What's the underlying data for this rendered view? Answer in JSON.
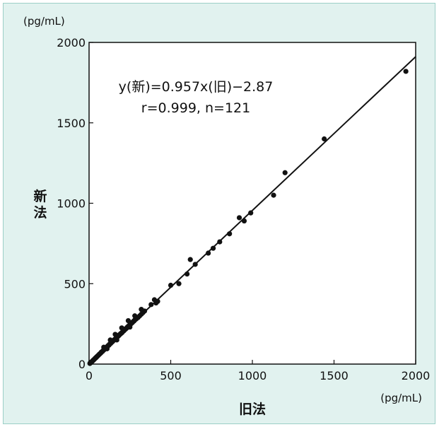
{
  "chart_data": {
    "type": "scatter",
    "xlabel": "旧法",
    "ylabel": "新法",
    "x_unit": "(pg/mL)",
    "y_unit": "(pg/mL)",
    "xlim": [
      0,
      2000
    ],
    "ylim": [
      0,
      2000
    ],
    "x_ticks": [
      "0",
      "500",
      "1000",
      "1500",
      "2000"
    ],
    "y_ticks": [
      "0",
      "500",
      "1000",
      "1500",
      "2000"
    ],
    "grid": false,
    "legend": "none",
    "annotation": {
      "line1": "y(新)=0.957x(旧)−2.87",
      "line2": "r=0.999, n=121"
    },
    "regression": {
      "slope": 0.957,
      "intercept": -2.87
    },
    "colors": {
      "background": "#e1f2ef",
      "plot": "#ffffff",
      "marks": "#111111"
    },
    "points": [
      [
        5,
        4
      ],
      [
        8,
        9
      ],
      [
        12,
        10
      ],
      [
        15,
        14
      ],
      [
        18,
        16
      ],
      [
        22,
        20
      ],
      [
        25,
        24
      ],
      [
        28,
        26
      ],
      [
        32,
        30
      ],
      [
        35,
        33
      ],
      [
        38,
        37
      ],
      [
        42,
        39
      ],
      [
        45,
        44
      ],
      [
        48,
        46
      ],
      [
        52,
        50
      ],
      [
        55,
        53
      ],
      [
        58,
        56
      ],
      [
        62,
        60
      ],
      [
        65,
        63
      ],
      [
        68,
        66
      ],
      [
        72,
        69
      ],
      [
        75,
        74
      ],
      [
        78,
        76
      ],
      [
        82,
        79
      ],
      [
        85,
        83
      ],
      [
        88,
        86
      ],
      [
        92,
        89
      ],
      [
        95,
        93
      ],
      [
        98,
        96
      ],
      [
        102,
        98
      ],
      [
        105,
        103
      ],
      [
        108,
        106
      ],
      [
        112,
        108
      ],
      [
        115,
        113
      ],
      [
        118,
        116
      ],
      [
        122,
        118
      ],
      [
        125,
        123
      ],
      [
        128,
        126
      ],
      [
        132,
        128
      ],
      [
        135,
        133
      ],
      [
        138,
        136
      ],
      [
        142,
        138
      ],
      [
        145,
        142
      ],
      [
        148,
        145
      ],
      [
        152,
        148
      ],
      [
        155,
        152
      ],
      [
        158,
        154
      ],
      [
        162,
        158
      ],
      [
        165,
        161
      ],
      [
        168,
        164
      ],
      [
        172,
        168
      ],
      [
        175,
        171
      ],
      [
        178,
        174
      ],
      [
        182,
        177
      ],
      [
        185,
        181
      ],
      [
        188,
        184
      ],
      [
        192,
        188
      ],
      [
        195,
        190
      ],
      [
        198,
        193
      ],
      [
        202,
        196
      ],
      [
        205,
        200
      ],
      [
        208,
        204
      ],
      [
        212,
        206
      ],
      [
        215,
        210
      ],
      [
        218,
        214
      ],
      [
        222,
        216
      ],
      [
        225,
        220
      ],
      [
        228,
        222
      ],
      [
        232,
        226
      ],
      [
        235,
        230
      ],
      [
        238,
        233
      ],
      [
        242,
        236
      ],
      [
        245,
        240
      ],
      [
        248,
        242
      ],
      [
        252,
        246
      ],
      [
        255,
        250
      ],
      [
        258,
        252
      ],
      [
        262,
        256
      ],
      [
        265,
        258
      ],
      [
        268,
        262
      ],
      [
        272,
        266
      ],
      [
        275,
        268
      ],
      [
        278,
        272
      ],
      [
        282,
        276
      ],
      [
        285,
        278
      ],
      [
        290,
        282
      ],
      [
        300,
        290
      ],
      [
        310,
        300
      ],
      [
        320,
        310
      ],
      [
        330,
        320
      ],
      [
        340,
        330
      ],
      [
        90,
        105
      ],
      [
        130,
        150
      ],
      [
        160,
        185
      ],
      [
        200,
        225
      ],
      [
        240,
        270
      ],
      [
        280,
        300
      ],
      [
        320,
        340
      ],
      [
        110,
        95
      ],
      [
        170,
        150
      ],
      [
        250,
        230
      ],
      [
        380,
        370
      ],
      [
        400,
        400
      ],
      [
        410,
        380
      ],
      [
        420,
        390
      ],
      [
        500,
        490
      ],
      [
        550,
        500
      ],
      [
        600,
        560
      ],
      [
        620,
        650
      ],
      [
        650,
        620
      ],
      [
        730,
        690
      ],
      [
        760,
        720
      ],
      [
        800,
        760
      ],
      [
        860,
        810
      ],
      [
        920,
        910
      ],
      [
        950,
        890
      ],
      [
        990,
        940
      ],
      [
        1130,
        1050
      ],
      [
        1200,
        1190
      ],
      [
        1440,
        1400
      ],
      [
        1940,
        1820
      ]
    ]
  }
}
